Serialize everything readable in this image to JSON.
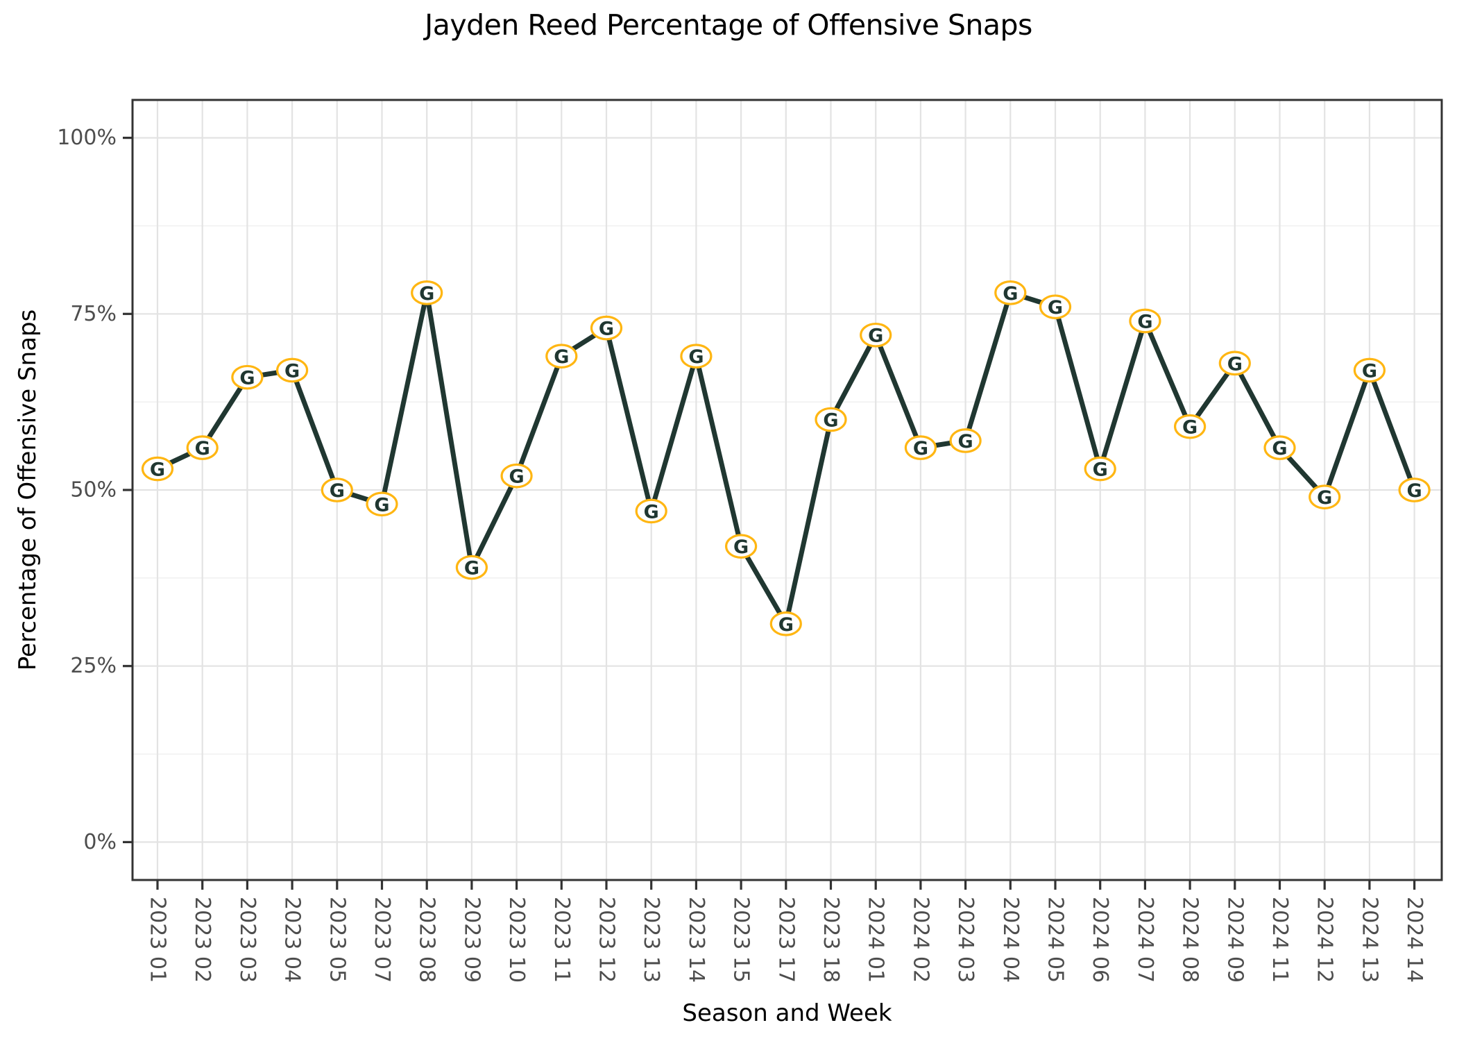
{
  "page": {
    "title": "Jayden Reed Percentage of Offensive Snaps"
  },
  "chart_data": {
    "type": "line",
    "title": "Jayden Reed Percentage of Offensive Snaps",
    "xlabel": "Season and Week",
    "ylabel": "Percentage of Offensive Snaps",
    "categories": [
      "2023 01",
      "2023 02",
      "2023 03",
      "2023 04",
      "2023 05",
      "2023 07",
      "2023 08",
      "2023 09",
      "2023 10",
      "2023 11",
      "2023 12",
      "2023 13",
      "2023 14",
      "2023 15",
      "2023 17",
      "2023 18",
      "2024 01",
      "2024 02",
      "2024 03",
      "2024 04",
      "2024 05",
      "2024 06",
      "2024 07",
      "2024 08",
      "2024 09",
      "2024 11",
      "2024 12",
      "2024 13",
      "2024 14"
    ],
    "values": [
      53,
      56,
      66,
      67,
      50,
      48,
      78,
      39,
      52,
      69,
      73,
      47,
      69,
      42,
      31,
      60,
      72,
      56,
      57,
      78,
      76,
      53,
      74,
      59,
      68,
      56,
      49,
      67,
      50
    ],
    "y_tick_values": [
      0,
      25,
      50,
      75,
      100
    ],
    "y_tick_labels": [
      "0%",
      "25%",
      "50%",
      "75%",
      "100%"
    ],
    "ylim": [
      0,
      100
    ],
    "grid": "major-and-minor",
    "legend": false,
    "marker_glyph": "G",
    "marker_style": "packers-logo-oval",
    "colors": {
      "line": "#203731",
      "marker_ring": "#FFB612",
      "marker_fill": "#FFFFFF",
      "marker_letter": "#203731",
      "grid_major": "#e3e3e3",
      "grid_minor": "#efefef",
      "panel_border": "#333333",
      "tick_mark": "#333333",
      "tick_label": "#4d4d4d",
      "axis_title": "#000000",
      "background": "#ffffff"
    }
  }
}
